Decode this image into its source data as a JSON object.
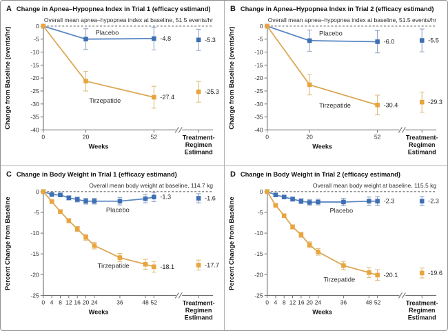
{
  "figure": {
    "colors": {
      "placebo_marker": "#3E6FB4",
      "placebo_line": "#5C88C4",
      "placebo_err": "#90A6C6",
      "tirzepatide_marker": "#E9A43C",
      "tirzepatide_line": "#DBA755",
      "tirzepatide_err": "#DDBC7E",
      "axis": "#707070",
      "dashed_baseline": "#4a4a4a"
    }
  },
  "chart_data": [
    {
      "type": "line",
      "panel_letter": "A",
      "title": "Change in Apnea–Hypopnea Index in Trial 1 (efficacy estimand)",
      "annotation": "Overall mean apnea–hypopnea index at baseline, 51.5 events/hr",
      "xlabel": "Weeks",
      "ylabel": "Change from Baseline (events/hr)",
      "estimand_label_lines": [
        "Treatment-",
        "Regimen",
        "Estimand"
      ],
      "ylim": [
        -40,
        0
      ],
      "yticks": [
        0,
        -5,
        -10,
        -15,
        -20,
        -25,
        -30,
        -35,
        -40
      ],
      "xticks": [
        0,
        20,
        52
      ],
      "x": [
        0,
        20,
        52
      ],
      "legend_position": "inline-labels",
      "grid": false,
      "series": [
        {
          "name": "Placebo",
          "color_key": "placebo",
          "values": [
            0,
            -5.0,
            -4.8
          ],
          "err": [
            0,
            4.0,
            4.4
          ],
          "end_label": "-4.8",
          "estimand": {
            "value": -5.3,
            "err": 4.1,
            "label": "-5.3"
          },
          "label_at": {
            "week": 30,
            "value": -2.6
          }
        },
        {
          "name": "Tirzepatide",
          "color_key": "tirzepatide",
          "values": [
            0,
            -21.2,
            -27.4
          ],
          "err": [
            0,
            3.8,
            4.2
          ],
          "end_label": "-27.4",
          "estimand": {
            "value": -25.3,
            "err": 4.0,
            "label": "-25.3"
          },
          "label_at": {
            "week": 29,
            "value": -28.8
          }
        }
      ]
    },
    {
      "type": "line",
      "panel_letter": "B",
      "title": "Change in Apnea–Hypopnea Index in Trial 2 (efficacy estimand)",
      "annotation": "Overall mean apnea–hypopnea index at baseline, 51.5 events/hr",
      "xlabel": "Weeks",
      "ylabel": "Change from Baseline (events/hr)",
      "estimand_label_lines": [
        "Treatment-",
        "Regimen",
        "Estimand"
      ],
      "ylim": [
        -40,
        0
      ],
      "yticks": [
        0,
        -5,
        -10,
        -15,
        -20,
        -25,
        -30,
        -35,
        -40
      ],
      "xticks": [
        0,
        20,
        52
      ],
      "x": [
        0,
        20,
        52
      ],
      "legend_position": "inline-labels",
      "grid": false,
      "series": [
        {
          "name": "Placebo",
          "color_key": "placebo",
          "values": [
            0,
            -5.6,
            -6.0
          ],
          "err": [
            0,
            4.1,
            4.3
          ],
          "end_label": "-6.0",
          "estimand": {
            "value": -5.5,
            "err": 4.4,
            "label": "-5.5"
          },
          "label_at": {
            "week": 30,
            "value": -2.8
          }
        },
        {
          "name": "Tirzepatide",
          "color_key": "tirzepatide",
          "values": [
            0,
            -22.6,
            -30.4
          ],
          "err": [
            0,
            3.9,
            3.8
          ],
          "end_label": "-30.4",
          "estimand": {
            "value": -29.3,
            "err": 3.9,
            "label": "-29.3"
          },
          "label_at": {
            "week": 32,
            "value": -30.6
          }
        }
      ]
    },
    {
      "type": "line",
      "panel_letter": "C",
      "title": "Change in Body Weight in Trial 1 (efficacy estimand)",
      "annotation": "Overall mean body weight at baseline, 114.7 kg",
      "xlabel": "Weeks",
      "ylabel": "Percent Change from Baseline",
      "estimand_label_lines": [
        "Treatment-",
        "Regimen",
        "Estimand"
      ],
      "ylim": [
        -25,
        0
      ],
      "yticks": [
        0,
        -5,
        -10,
        -15,
        -20,
        -25
      ],
      "xticks": [
        0,
        4,
        8,
        12,
        16,
        20,
        24,
        36,
        48,
        52
      ],
      "x": [
        0,
        4,
        8,
        12,
        16,
        20,
        24,
        36,
        48,
        52
      ],
      "legend_position": "inline-labels",
      "grid": false,
      "series": [
        {
          "name": "Placebo",
          "color_key": "placebo",
          "values": [
            0,
            -0.7,
            -0.8,
            -1.5,
            -1.9,
            -2.3,
            -2.3,
            -2.3,
            -1.7,
            -1.3
          ],
          "err": [
            0,
            0.4,
            0.4,
            0.5,
            0.6,
            0.7,
            0.7,
            0.9,
            1.0,
            1.1
          ],
          "end_label": "-1.3",
          "estimand": {
            "value": -1.6,
            "err": 1.1,
            "label": "-1.6"
          },
          "label_at": {
            "week": 35,
            "value": -4.4
          }
        },
        {
          "name": "Tirzepatide",
          "color_key": "tirzepatide",
          "values": [
            0,
            -2.4,
            -4.8,
            -7.0,
            -9.0,
            -11.0,
            -13.0,
            -15.9,
            -17.5,
            -18.1
          ],
          "err": [
            0,
            0.3,
            0.4,
            0.5,
            0.6,
            0.7,
            0.8,
            1.0,
            1.2,
            1.3
          ],
          "end_label": "-18.1",
          "estimand": {
            "value": -17.7,
            "err": 1.2,
            "label": "-17.7"
          },
          "label_at": {
            "week": 33,
            "value": -17.9
          }
        }
      ]
    },
    {
      "type": "line",
      "panel_letter": "D",
      "title": "Change in Body Weight in Trial 2 (efficacy estimand)",
      "annotation": "Overall mean body weight at baseline, 115.5 kg",
      "xlabel": "Weeks",
      "ylabel": "Percent Change from Baseline",
      "estimand_label_lines": [
        "Treatment-",
        "Regimen",
        "Estimand"
      ],
      "ylim": [
        -25,
        0
      ],
      "yticks": [
        0,
        -5,
        -10,
        -15,
        -20,
        -25
      ],
      "xticks": [
        0,
        4,
        8,
        12,
        16,
        20,
        24,
        36,
        48,
        52
      ],
      "x": [
        0,
        4,
        8,
        12,
        16,
        20,
        24,
        36,
        48,
        52
      ],
      "legend_position": "inline-labels",
      "grid": false,
      "series": [
        {
          "name": "Placebo",
          "color_key": "placebo",
          "values": [
            0,
            -0.8,
            -1.3,
            -1.8,
            -2.3,
            -2.6,
            -2.5,
            -2.5,
            -2.3,
            -2.3
          ],
          "err": [
            0,
            0.4,
            0.4,
            0.5,
            0.6,
            0.7,
            0.7,
            0.9,
            1.0,
            1.1
          ],
          "end_label": "-2.3",
          "estimand": {
            "value": -2.3,
            "err": 1.1,
            "label": "-2.3"
          },
          "label_at": {
            "week": 35,
            "value": -4.6
          }
        },
        {
          "name": "Tirzepatide",
          "color_key": "tirzepatide",
          "values": [
            0,
            -3.3,
            -5.8,
            -8.5,
            -10.4,
            -12.8,
            -14.5,
            -17.8,
            -19.5,
            -20.1
          ],
          "err": [
            0,
            0.3,
            0.4,
            0.5,
            0.6,
            0.7,
            0.8,
            1.0,
            1.2,
            1.3
          ],
          "end_label": "-20.1",
          "estimand": {
            "value": -19.6,
            "err": 1.2,
            "label": "-19.6"
          },
          "label_at": {
            "week": 34,
            "value": -21.2
          }
        }
      ]
    }
  ]
}
